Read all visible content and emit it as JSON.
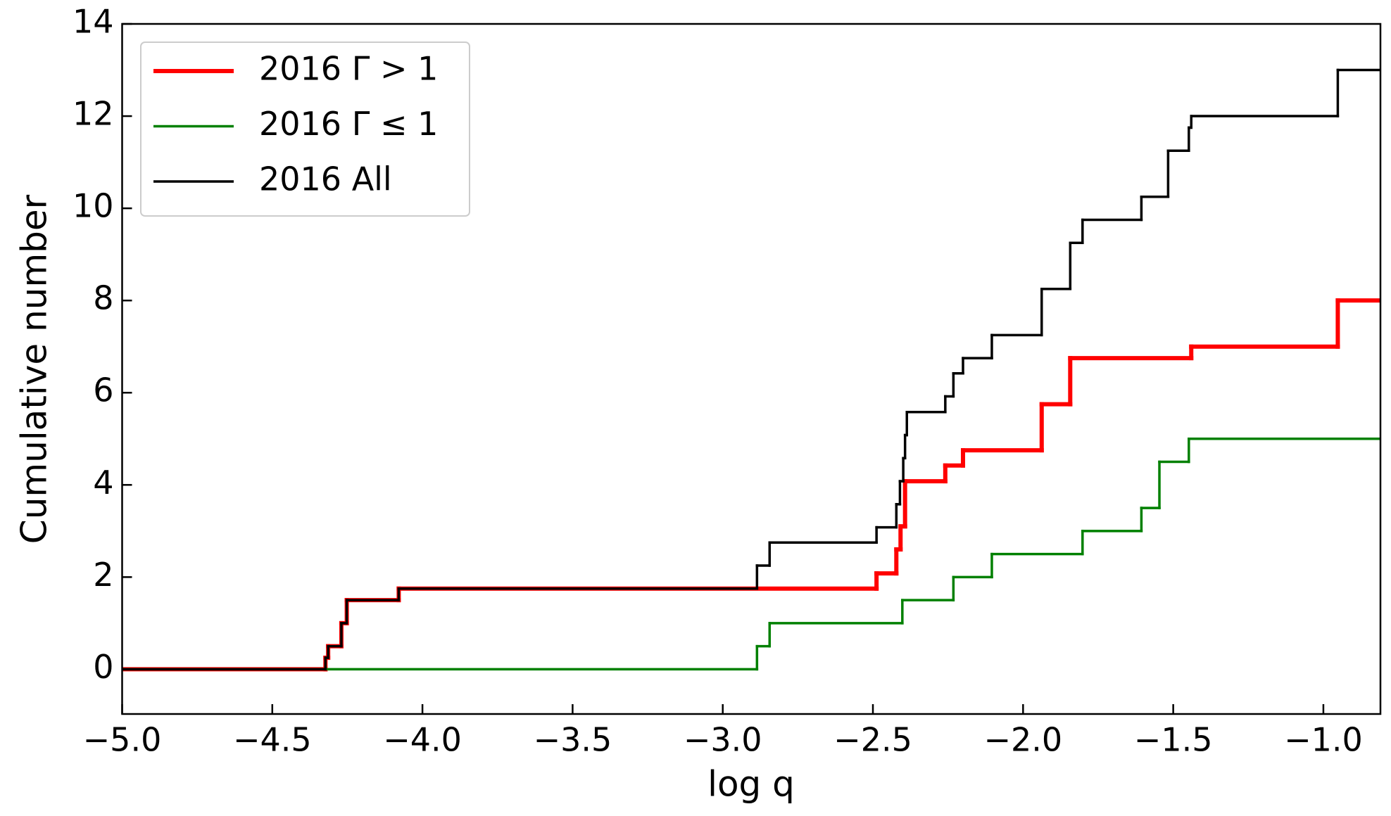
{
  "chart_data": {
    "type": "line",
    "drawstyle": "steps-post",
    "xlabel": "log q",
    "ylabel": "Cumulative number",
    "xlim": [
      -5.0,
      -0.81
    ],
    "ylim": [
      -0.97,
      14
    ],
    "xticks": [
      {
        "value": -5.0,
        "label": "−5.0"
      },
      {
        "value": -4.5,
        "label": "−4.5"
      },
      {
        "value": -4.0,
        "label": "−4.0"
      },
      {
        "value": -3.5,
        "label": "−3.5"
      },
      {
        "value": -3.0,
        "label": "−3.0"
      },
      {
        "value": -2.5,
        "label": "−2.5"
      },
      {
        "value": -2.0,
        "label": "−2.0"
      },
      {
        "value": -1.5,
        "label": "−1.5"
      },
      {
        "value": -1.0,
        "label": "−1.0"
      }
    ],
    "yticks": [
      0,
      2,
      4,
      6,
      8,
      10,
      12,
      14
    ],
    "grid": false,
    "legend": "upper left",
    "series": [
      {
        "name": "2016 Γ > 1",
        "color": "#ff0000",
        "width": 6,
        "x": [
          -5.0,
          -4.323,
          -4.314,
          -4.27,
          -4.252,
          -4.079,
          -2.488,
          -2.422,
          -2.408,
          -2.393,
          -2.259,
          -2.2,
          -1.938,
          -1.843,
          -1.44,
          -0.952
        ],
        "values": [
          0,
          0.25,
          0.5,
          1.0,
          1.5,
          1.75,
          2.08,
          2.6,
          3.1,
          4.08,
          4.42,
          4.75,
          5.75,
          6.75,
          7.0,
          8.0
        ]
      },
      {
        "name": "2016 Γ ≤ 1",
        "color": "#008000",
        "width": 3.5,
        "x": [
          -5.0,
          -2.886,
          -2.844,
          -2.402,
          -2.232,
          -2.104,
          -1.802,
          -1.606,
          -1.546,
          -1.448
        ],
        "values": [
          0,
          0.5,
          1.0,
          1.5,
          2.0,
          2.5,
          3.0,
          3.5,
          4.5,
          5.0
        ]
      },
      {
        "name": "2016 All",
        "color": "#000000",
        "width": 3.5,
        "x": [
          -5.0,
          -4.323,
          -4.314,
          -4.27,
          -4.252,
          -4.079,
          -2.886,
          -2.844,
          -2.488,
          -2.422,
          -2.41,
          -2.399,
          -2.393,
          -2.387,
          -2.259,
          -2.232,
          -2.2,
          -2.104,
          -1.938,
          -1.843,
          -1.802,
          -1.606,
          -1.517,
          -1.448,
          -1.44,
          -0.952
        ],
        "values": [
          0,
          0.25,
          0.5,
          1.0,
          1.5,
          1.75,
          2.25,
          2.75,
          3.08,
          3.58,
          4.08,
          4.58,
          5.08,
          5.58,
          5.92,
          6.42,
          6.75,
          7.25,
          8.25,
          9.25,
          9.75,
          10.25,
          11.25,
          11.75,
          12.0,
          13.0
        ]
      }
    ]
  }
}
